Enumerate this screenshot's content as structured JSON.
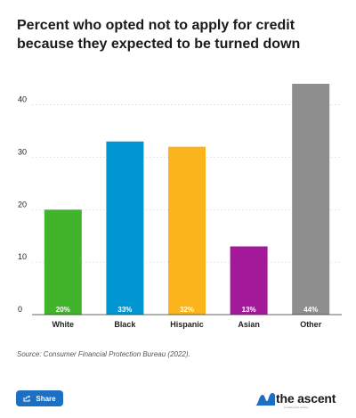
{
  "chart_data": {
    "type": "bar",
    "title": "Percent who opted not to apply for credit because they expected to be turned down",
    "categories": [
      "White",
      "Black",
      "Hispanic",
      "Asian",
      "Other"
    ],
    "values": [
      20,
      33,
      32,
      13,
      44
    ],
    "data_labels": [
      "20%",
      "33%",
      "32%",
      "13%",
      "44%"
    ],
    "colors": [
      "#40b52b",
      "#0096d1",
      "#fbb41c",
      "#a3199a",
      "#8e8e8e"
    ],
    "yticks": [
      0,
      10,
      20,
      30,
      40
    ],
    "ylim": [
      0,
      44
    ],
    "grid": true,
    "legend": "none"
  },
  "source": "Source: Consumer Financial Protection Bureau (2022).",
  "share_label": "Share",
  "share_icon": "share-icon",
  "brand": {
    "name": "the ascent",
    "tagline": "a motley fool service",
    "logo_icon": "ascent-wave-icon",
    "logo_color": "#1c6fc1"
  }
}
